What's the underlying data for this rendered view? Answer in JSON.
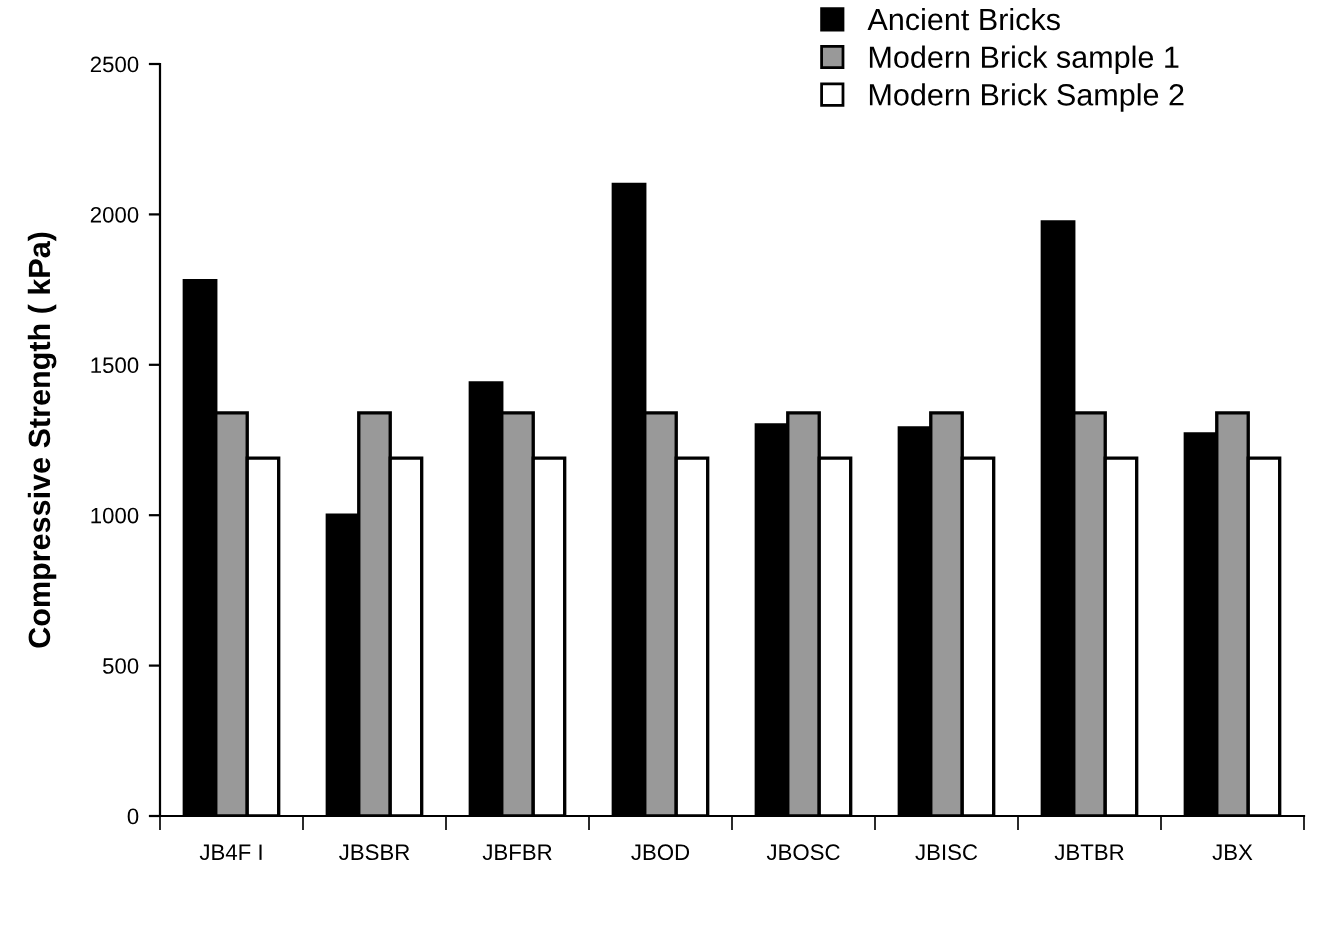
{
  "chart_data": {
    "type": "bar",
    "ylabel": "Compressive Strength ( kPa)",
    "categories": [
      "JB4F I",
      "JBSBR",
      "JBFBR",
      "JBOD",
      "JBOSC",
      "JBISC",
      "JBTBR",
      "JBX"
    ],
    "series": [
      {
        "name": "Ancient Bricks",
        "color": "#000000",
        "values": [
          1780,
          1000,
          1440,
          2100,
          1300,
          1290,
          1975,
          1270
        ]
      },
      {
        "name": "Modern Brick sample 1",
        "color": "#999999",
        "values": [
          1340,
          1340,
          1340,
          1340,
          1340,
          1340,
          1340,
          1340
        ]
      },
      {
        "name": "Modern Brick Sample 2",
        "color": "#ffffff",
        "values": [
          1190,
          1190,
          1190,
          1190,
          1190,
          1190,
          1190,
          1190
        ]
      }
    ],
    "ylim": [
      0,
      2500
    ],
    "yticks": [
      0,
      500,
      1000,
      1500,
      2000,
      2500
    ],
    "grid": false,
    "legend": "top right"
  }
}
